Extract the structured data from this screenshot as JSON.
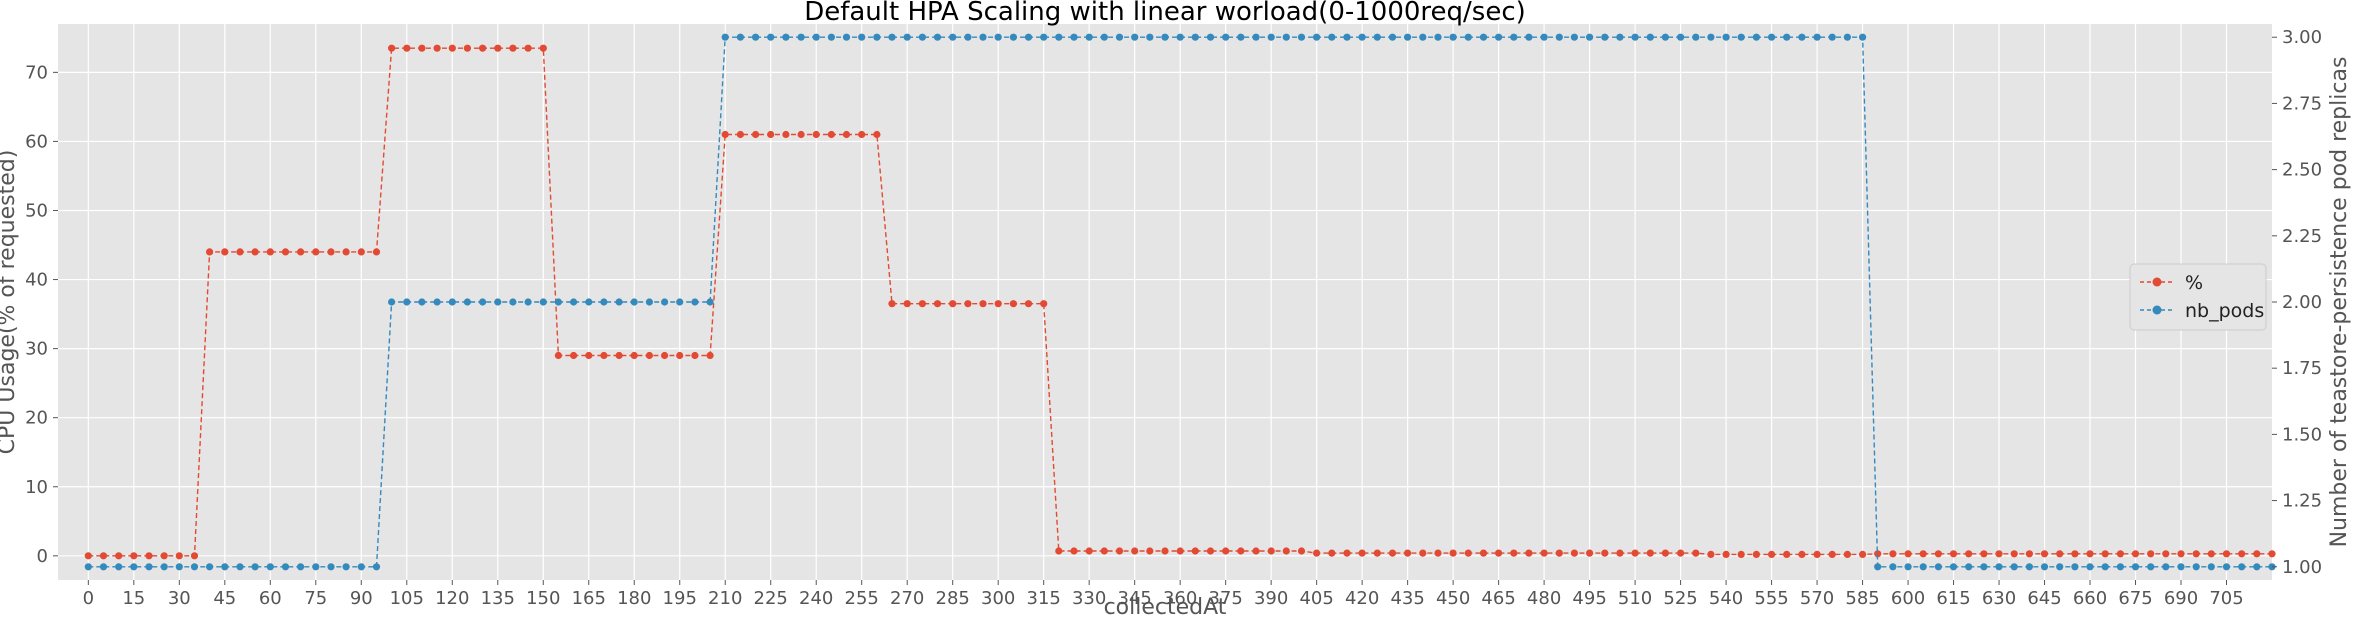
{
  "chart_data": {
    "type": "line",
    "title": "Default HPA Scaling with linear worload(0-1000req/sec)",
    "xlabel": "collectedAt",
    "ylabel_left": "CPU Usage(% of requested)",
    "ylabel_right": "Number of teastore-persistence pod replicas",
    "xlim": [
      -10,
      720
    ],
    "ylim_left": [
      -3.5,
      77
    ],
    "ylim_right": [
      0.95,
      3.05
    ],
    "x_ticks": [
      0,
      15,
      30,
      45,
      60,
      75,
      90,
      105,
      120,
      135,
      150,
      165,
      180,
      195,
      210,
      225,
      240,
      255,
      270,
      285,
      300,
      315,
      330,
      345,
      360,
      375,
      390,
      405,
      420,
      435,
      450,
      465,
      480,
      495,
      510,
      525,
      540,
      555,
      570,
      585,
      600,
      615,
      630,
      645,
      660,
      675,
      690,
      705
    ],
    "y_ticks_left": [
      0,
      10,
      20,
      30,
      40,
      50,
      60,
      70
    ],
    "y_ticks_right": [
      "1.00",
      "1.25",
      "1.50",
      "1.75",
      "2.00",
      "2.25",
      "2.50",
      "2.75",
      "3.00"
    ],
    "grid": true,
    "legend_position": "center-right",
    "series": [
      {
        "name": "%",
        "axis": "left",
        "color": "#E24A33",
        "style": "dashed",
        "marker": "circle",
        "segments": [
          {
            "x_from": 0,
            "x_to": 35,
            "value": 0
          },
          {
            "x_from": 40,
            "x_to": 95,
            "value": 44
          },
          {
            "x_from": 100,
            "x_to": 150,
            "value": 73.5
          },
          {
            "x_from": 155,
            "x_to": 205,
            "value": 29
          },
          {
            "x_from": 210,
            "x_to": 260,
            "value": 61
          },
          {
            "x_from": 265,
            "x_to": 315,
            "value": 36.5
          },
          {
            "x_from": 320,
            "x_to": 400,
            "value": 0.7
          },
          {
            "x_from": 405,
            "x_to": 530,
            "value": 0.4
          },
          {
            "x_from": 535,
            "x_to": 585,
            "value": 0.2
          },
          {
            "x_from": 590,
            "x_to": 720,
            "value": 0.3
          }
        ]
      },
      {
        "name": "nb_pods",
        "axis": "right",
        "color": "#348ABD",
        "style": "dashed",
        "marker": "circle",
        "segments": [
          {
            "x_from": 0,
            "x_to": 95,
            "value": 1
          },
          {
            "x_from": 100,
            "x_to": 205,
            "value": 2
          },
          {
            "x_from": 210,
            "x_to": 585,
            "value": 3
          },
          {
            "x_from": 590,
            "x_to": 720,
            "value": 1
          }
        ]
      }
    ]
  }
}
